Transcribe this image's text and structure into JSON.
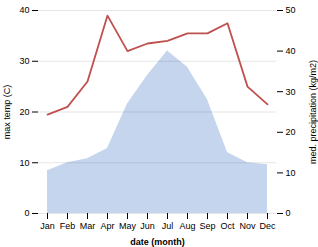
{
  "chart_data": {
    "type": "line",
    "xlabel": "date (month)",
    "ylabel": "max temp (C)",
    "y2label": "med. precipitation (kg/m2)",
    "categories": [
      "Jan",
      "Feb",
      "Mar",
      "Apr",
      "May",
      "Jun",
      "Jul",
      "Aug",
      "Sep",
      "Oct",
      "Nov",
      "Dec"
    ],
    "series": [
      {
        "type": "area",
        "color": "#c5d5ee",
        "axis": "y2",
        "values": [
          10.5,
          12.5,
          13.5,
          16.0,
          27.0,
          34.0,
          40.0,
          36.0,
          28.0,
          15.0,
          12.5,
          12.0
        ]
      },
      {
        "type": "line",
        "color": "#c0504d",
        "values": [
          19.5,
          21.0,
          26.0,
          39.0,
          32.0,
          33.5,
          34.0,
          35.5,
          35.5,
          37.5,
          25.0,
          21.5
        ]
      }
    ],
    "ylim": [
      0,
      40
    ],
    "yticks": [
      0,
      10,
      20,
      30,
      40
    ],
    "y2lim": [
      0,
      50
    ],
    "y2ticks": [
      0,
      10,
      20,
      30,
      40,
      50
    ],
    "grid": true
  }
}
